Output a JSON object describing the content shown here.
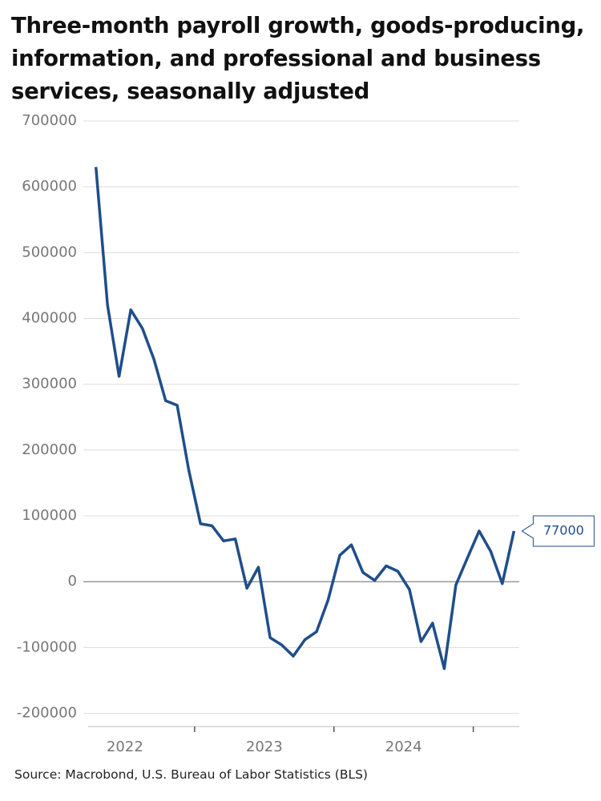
{
  "chart_data": {
    "type": "line",
    "title": "Three-month payroll growth, goods-producing, information, and professional and business services, seasonally adjusted",
    "source": "Source: Macrobond, U.S. Bureau of Labor Statistics (BLS)",
    "x": [
      2022.292,
      2022.375,
      2022.458,
      2022.542,
      2022.625,
      2022.708,
      2022.792,
      2022.875,
      2022.958,
      2023.042,
      2023.125,
      2023.208,
      2023.292,
      2023.375,
      2023.458,
      2023.542,
      2023.625,
      2023.708,
      2023.792,
      2023.875,
      2023.958,
      2024.042,
      2024.125,
      2024.208,
      2024.292,
      2024.375,
      2024.458,
      2024.542,
      2024.625,
      2024.708,
      2024.792,
      2024.875,
      2024.958,
      2025.042,
      2025.125,
      2025.208,
      2025.292
    ],
    "values": [
      630000,
      420000,
      312000,
      413000,
      385000,
      338000,
      275000,
      268000,
      170000,
      88000,
      85000,
      62000,
      65000,
      -10000,
      22000,
      -85000,
      -96000,
      -113000,
      -88000,
      -76000,
      -28000,
      40000,
      56000,
      14000,
      2000,
      24000,
      16000,
      -12000,
      -91000,
      -63000,
      -132000,
      -5000,
      36000,
      77000,
      46000,
      -3000,
      77000
    ],
    "color": "#1f4e8a",
    "xlim": [
      2022.236,
      2025.33
    ],
    "xticks": [
      2023,
      2024,
      2025
    ],
    "xlabels": [
      {
        "value": 2022.5,
        "label": "2022"
      },
      {
        "value": 2023.5,
        "label": "2023"
      },
      {
        "value": 2024.5,
        "label": "2024"
      }
    ],
    "ylim": [
      -220000,
      700000
    ],
    "yticks": [
      -200000,
      -100000,
      0,
      100000,
      200000,
      300000,
      400000,
      500000,
      600000,
      700000
    ],
    "grid": true
  }
}
